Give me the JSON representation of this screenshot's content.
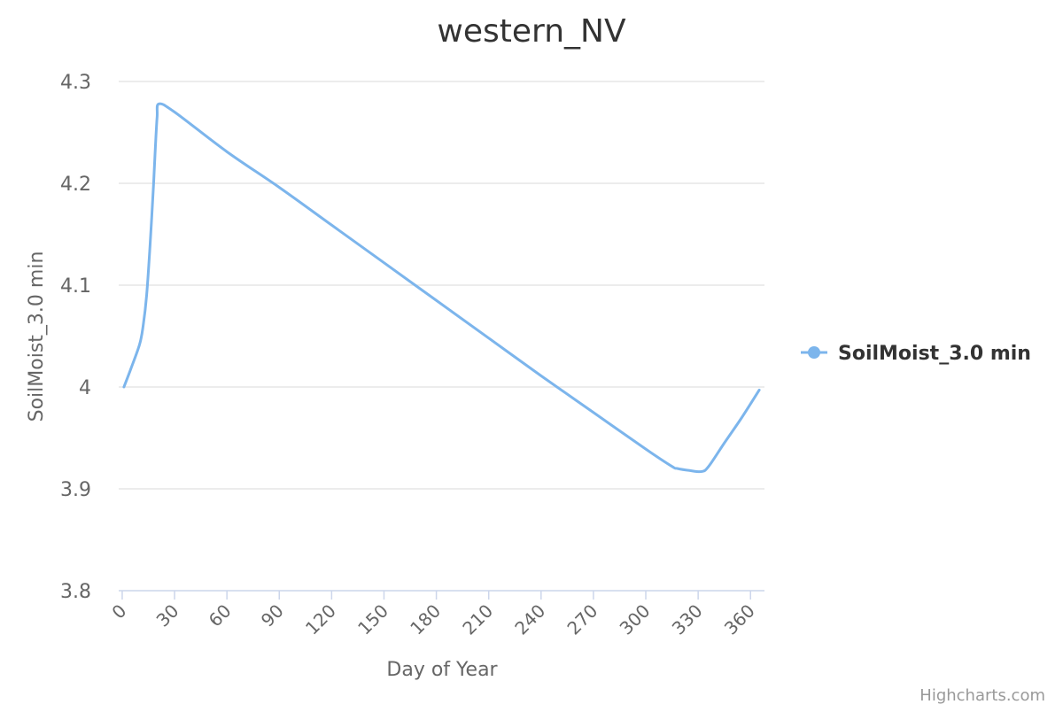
{
  "chart_data": {
    "type": "line",
    "title": "western_NV",
    "xlabel": "Day of Year",
    "ylabel": "SoilMoist_3.0 min",
    "xlim": [
      -2,
      368
    ],
    "ylim": [
      3.8,
      4.3
    ],
    "x_ticks": [
      "0",
      "30",
      "60",
      "90",
      "120",
      "150",
      "180",
      "210",
      "240",
      "270",
      "300",
      "330",
      "360"
    ],
    "y_ticks": [
      "3.8",
      "3.9",
      "4",
      "4.1",
      "4.2",
      "4.3"
    ],
    "grid": true,
    "legend_position": "right",
    "series": [
      {
        "name": "SoilMoist_3.0 min",
        "color": "#7cb5ec",
        "x": [
          1,
          5,
          10,
          12,
          14,
          16,
          18,
          19,
          20,
          21,
          30,
          60,
          90,
          120,
          150,
          180,
          210,
          240,
          270,
          300,
          315,
          318,
          325,
          332,
          336,
          345,
          355,
          365
        ],
        "y": [
          4.0,
          4.018,
          4.042,
          4.06,
          4.09,
          4.14,
          4.2,
          4.235,
          4.265,
          4.278,
          4.27,
          4.231,
          4.196,
          4.159,
          4.122,
          4.085,
          4.048,
          4.011,
          3.975,
          3.939,
          3.922,
          3.92,
          3.918,
          3.917,
          3.922,
          3.945,
          3.97,
          3.997
        ]
      }
    ]
  },
  "credits": "Highcharts.com"
}
